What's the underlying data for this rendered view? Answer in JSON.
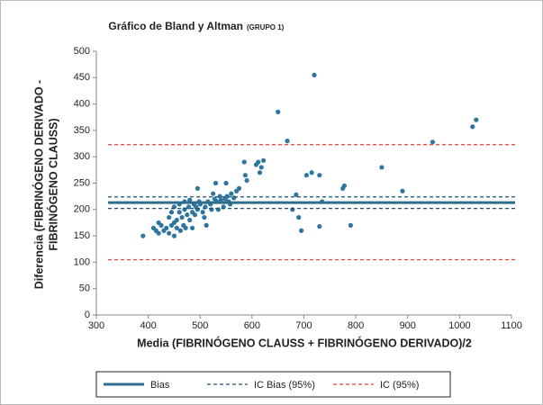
{
  "chart_data": {
    "type": "scatter",
    "title": "Gráfico de Bland y Altman",
    "subtitle": "(GRUPO 1)",
    "xlabel": "Media  (FIBRINÓGENO CLAUSS + FIBRINÓGENO DERIVADO)/2",
    "ylabel": [
      "Diferencia (FIBRINÓGENO DERIVADO -",
      "FIBRINÓGENO CLAUSS)"
    ],
    "xlim": [
      300,
      1100
    ],
    "xticks": [
      300,
      400,
      500,
      600,
      700,
      800,
      900,
      1000,
      1100
    ],
    "ylim": [
      0,
      500
    ],
    "yticks": [
      0,
      50,
      100,
      150,
      200,
      250,
      300,
      350,
      400,
      450,
      500
    ],
    "series": [
      {
        "color": "#2e75a0",
        "x": [
          390,
          410,
          415,
          420,
          420,
          425,
          430,
          435,
          440,
          440,
          445,
          445,
          450,
          450,
          450,
          455,
          455,
          460,
          460,
          462,
          465,
          468,
          470,
          470,
          472,
          475,
          478,
          480,
          480,
          485,
          485,
          488,
          490,
          492,
          495,
          495,
          498,
          500,
          505,
          508,
          510,
          512,
          515,
          520,
          522,
          525,
          528,
          530,
          532,
          535,
          538,
          540,
          545,
          548,
          550,
          552,
          555,
          558,
          560,
          565,
          570,
          575,
          585,
          587,
          590,
          608,
          612,
          615,
          618,
          622,
          650,
          668,
          678,
          685,
          690,
          695,
          705,
          715,
          720,
          730,
          730,
          735,
          775,
          778,
          790,
          850,
          890,
          948,
          1025,
          1032
        ],
        "values": [
          150,
          165,
          160,
          175,
          155,
          170,
          160,
          165,
          185,
          155,
          195,
          170,
          175,
          150,
          205,
          180,
          165,
          195,
          210,
          160,
          185,
          170,
          200,
          215,
          165,
          190,
          205,
          180,
          218,
          195,
          165,
          210,
          190,
          205,
          200,
          240,
          215,
          210,
          195,
          185,
          205,
          170,
          215,
          210,
          200,
          230,
          220,
          250,
          215,
          200,
          225,
          218,
          205,
          220,
          250,
          225,
          215,
          210,
          230,
          222,
          235,
          240,
          290,
          265,
          255,
          285,
          290,
          270,
          280,
          293,
          385,
          330,
          200,
          228,
          185,
          160,
          265,
          270,
          455,
          265,
          168,
          215,
          240,
          245,
          170,
          280,
          235,
          328,
          357,
          370
        ]
      }
    ],
    "lines": [
      {
        "name": "Bias",
        "color": "#2f6d8c",
        "dash": false,
        "values": [
          213
        ]
      },
      {
        "name": "IC Bias (95%)",
        "color": "#1f4e79",
        "dash": true,
        "values": [
          224,
          202
        ]
      },
      {
        "name": "IC (95%)",
        "color": "#e8413a",
        "dash": true,
        "values": [
          323,
          105
        ]
      }
    ]
  }
}
